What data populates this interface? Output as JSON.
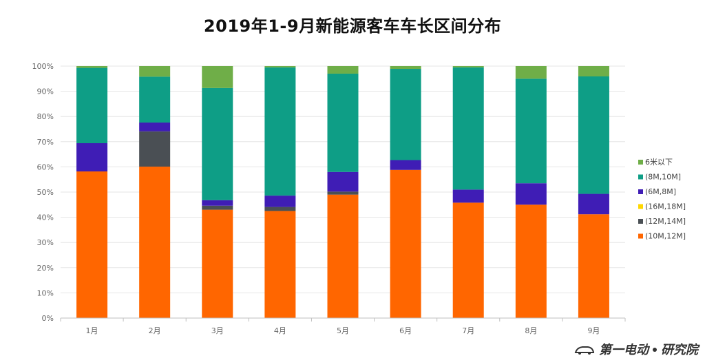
{
  "chart_data": {
    "type": "bar",
    "stacked": true,
    "normalized": true,
    "title": "2019年1-9月新能源客车车长区间分布",
    "xlabel": "",
    "ylabel": "",
    "ylim": [
      0,
      100
    ],
    "yticks": [
      "0%",
      "10%",
      "20%",
      "30%",
      "40%",
      "50%",
      "60%",
      "70%",
      "80%",
      "90%",
      "100%"
    ],
    "grid": true,
    "legend_position": "right",
    "categories": [
      "1月",
      "2月",
      "3月",
      "4月",
      "5月",
      "6月",
      "7月",
      "8月",
      "9月"
    ],
    "series": [
      {
        "name": "(10M,12M]",
        "color": "#FF6600",
        "values": [
          58.2,
          60.1,
          43.0,
          42.5,
          49.0,
          58.8,
          45.8,
          45.0,
          41.2
        ]
      },
      {
        "name": "(12M,14M]",
        "color": "#4A4F54",
        "values": [
          0.0,
          14.0,
          1.6,
          1.6,
          1.2,
          0.0,
          0.0,
          0.0,
          0.0
        ]
      },
      {
        "name": "(16M,18M]",
        "color": "#FFD700",
        "values": [
          0.0,
          0.0,
          0.0,
          0.0,
          0.0,
          0.0,
          0.0,
          0.0,
          0.0
        ]
      },
      {
        "name": "(6M,8M]",
        "color": "#3F1DB5",
        "values": [
          11.2,
          3.5,
          2.2,
          4.5,
          7.8,
          3.9,
          5.2,
          8.5,
          8.1
        ]
      },
      {
        "name": "(8M,10M]",
        "color": "#0E9E86",
        "values": [
          29.9,
          18.2,
          44.5,
          50.9,
          39.0,
          36.2,
          48.5,
          41.5,
          46.6
        ]
      },
      {
        "name": "6米以下",
        "color": "#6FAE48",
        "values": [
          0.7,
          4.2,
          8.7,
          0.5,
          3.0,
          1.1,
          0.5,
          5.0,
          4.1
        ]
      }
    ],
    "legend_order": [
      "6米以下",
      "(8M,10M]",
      "(6M,8M]",
      "(16M,18M]",
      "(12M,14M]",
      "(10M,12M]"
    ]
  },
  "colors": {
    "grid": "#E6E6E6",
    "axis": "#BFBFBF",
    "tick_text": "#666666"
  },
  "watermark": {
    "brand": "第一电动",
    "sub": "研究院"
  }
}
